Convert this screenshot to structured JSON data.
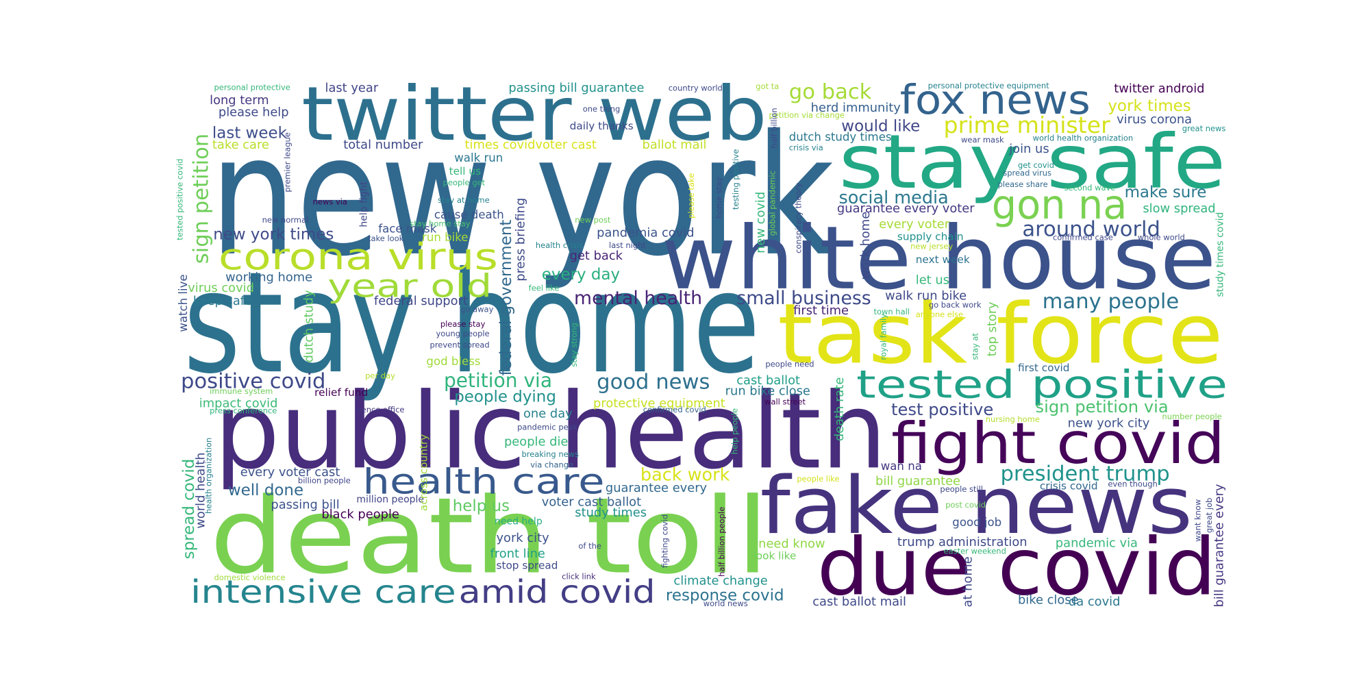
{
  "words": [
    "new york",
    "stay home",
    "public health",
    "death toll",
    "white house",
    "task force",
    "stay safe",
    "twitter web",
    "fake news",
    "due covid",
    "fight covid",
    "fox news",
    "gon na",
    "corona virus",
    "year old",
    "health care",
    "tested positive",
    "intensive care",
    "amid covid",
    "prime minister",
    "go back",
    "social media",
    "would like",
    "around world",
    "many people",
    "president trump",
    "sign petition via",
    "test positive",
    "new york city",
    "mental health",
    "small business",
    "good news",
    "petition via",
    "positive covid",
    "new york times",
    "sign petition",
    "last week",
    "long term",
    "please help",
    "last year",
    "personal protective",
    "take care",
    "total number",
    "passing bill guarantee",
    "country world",
    "times covidvoter cast",
    "ballot mail",
    "daily thanks",
    "one thing",
    "walk run",
    "tell us",
    "people get",
    "stay at home",
    "cause death",
    "face mask",
    "stay home stay",
    "run bike",
    "take look",
    "news via",
    "new normal",
    "working home",
    "virus covid",
    "keep safe",
    "federal support",
    "go away",
    "please stay",
    "young people",
    "prevent spread",
    "god bless",
    "per day",
    "immune system",
    "relief fund",
    "impact covid",
    "press conference",
    "pence office",
    "every day",
    "pandemia covid",
    "get back",
    "new post",
    "people dying",
    "one day",
    "pandemic peak",
    "people die",
    "breaking news",
    "via change",
    "protective equipment",
    "confirmed covid",
    "back work",
    "guarantee every",
    "voter cast ballot",
    "study times",
    "help us",
    "need help",
    "york city",
    "front line",
    "stop spread",
    "of the",
    "click link",
    "every voter cast",
    "well done",
    "passing bill",
    "million people",
    "billion people",
    "black people",
    "domestic violence",
    "herd immunity",
    "dutch study times",
    "crisis via",
    "petition via change",
    "got ta",
    "guarantee every voter",
    "every voter",
    "supply chain",
    "new jersey",
    "next week",
    "let us",
    "walk run bike",
    "top story",
    "first time",
    "town hall",
    "go back work",
    "anyone else",
    "cast ballot",
    "run bike close",
    "people need",
    "wall street",
    "nursing home",
    "number people",
    "first covid",
    "wan na",
    "bill guarantee",
    "crisis covid",
    "even though",
    "people still",
    "people like",
    "post covid",
    "good job",
    "trump administration",
    "pandemic via",
    "easter weekend",
    "need know",
    "look like",
    "climate change",
    "response covid",
    "cast ballot mail",
    "bike close",
    "da covid",
    "world news",
    "twitter android",
    "york times",
    "virus corona",
    "great news",
    "personal protective equipment",
    "world health organization",
    "wear mask",
    "join us",
    "get covid",
    "spread virus",
    "please share",
    "second wave",
    "make sure",
    "slow spread",
    "confirmed case",
    "whole world",
    "watch live",
    "tested positive covid",
    "premier league",
    "help fight",
    "dutch study",
    "spread covid",
    "world health",
    "health organization",
    "across country",
    "federal government",
    "press briefing",
    "stay strong",
    "health crisis",
    "feel like",
    "last night",
    "please take",
    "home stay",
    "testing positive",
    "new covid",
    "global pandemic",
    "half billion",
    "conspiracy theory",
    "work home",
    "royal family",
    "stay at",
    "death rate",
    "help people",
    "half billion people",
    "fighting covid",
    "at home",
    "study times covid",
    "want know",
    "great job",
    "bill guarantee every"
  ]
}
